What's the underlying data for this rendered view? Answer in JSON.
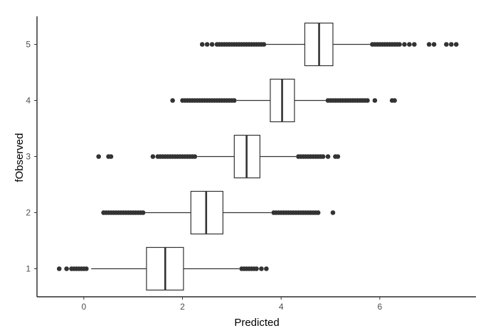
{
  "chart_data": {
    "type": "boxplot",
    "orientation": "horizontal",
    "title": "",
    "xlabel": "Predicted",
    "ylabel": "fObserved",
    "x_ticks": [
      "0",
      "2",
      "4",
      "6"
    ],
    "x_tick_values": [
      0,
      2,
      4,
      6
    ],
    "xlim": [
      -0.95,
      7.95
    ],
    "y_ticks": [
      "1",
      "2",
      "3",
      "4",
      "5"
    ],
    "grid": false,
    "legend": "none",
    "colors": {
      "box_fill": "#ffffff",
      "box_stroke": "#333333",
      "outlier": "#333333",
      "axis": "#000000"
    },
    "categories": [
      "1",
      "2",
      "3",
      "4",
      "5"
    ],
    "boxes": [
      {
        "category": "1",
        "whisker_low": 0.15,
        "q1": 1.27,
        "median": 1.65,
        "q3": 2.02,
        "whisker_high": 3.15,
        "outliers": [
          -0.5,
          -0.35,
          -0.25,
          -0.2,
          -0.15,
          -0.1,
          -0.05,
          0.0,
          0.05,
          3.2,
          3.25,
          3.3,
          3.35,
          3.4,
          3.45,
          3.5,
          3.6,
          3.7
        ]
      },
      {
        "category": "2",
        "whisker_low": 0.6,
        "q1": 2.17,
        "median": 2.48,
        "q3": 2.82,
        "whisker_high": 3.8,
        "outliers": [
          0.4,
          0.45,
          0.5,
          0.55,
          0.6,
          0.65,
          0.7,
          0.75,
          0.8,
          0.85,
          0.9,
          0.95,
          1.0,
          1.05,
          1.1,
          1.15,
          1.2,
          3.85,
          3.9,
          3.95,
          4.0,
          4.05,
          4.1,
          4.15,
          4.2,
          4.25,
          4.3,
          4.35,
          4.4,
          4.45,
          4.5,
          4.55,
          4.6,
          4.65,
          4.7,
          4.75,
          5.05
        ]
      },
      {
        "category": "3",
        "whisker_low": 2.3,
        "q1": 3.05,
        "median": 3.3,
        "q3": 3.57,
        "whisker_high": 4.3,
        "outliers": [
          0.3,
          0.5,
          0.55,
          1.4,
          1.5,
          1.55,
          1.6,
          1.65,
          1.7,
          1.75,
          1.8,
          1.85,
          1.9,
          1.95,
          2.0,
          2.05,
          2.1,
          2.15,
          2.2,
          2.25,
          4.35,
          4.4,
          4.45,
          4.5,
          4.55,
          4.6,
          4.65,
          4.7,
          4.75,
          4.8,
          4.85,
          4.95,
          5.1,
          5.15
        ]
      },
      {
        "category": "4",
        "whisker_low": 3.1,
        "q1": 3.78,
        "median": 4.02,
        "q3": 4.27,
        "whisker_high": 4.95,
        "outliers": [
          1.8,
          2.0,
          2.05,
          2.1,
          2.15,
          2.2,
          2.25,
          2.3,
          2.35,
          2.4,
          2.45,
          2.5,
          2.55,
          2.6,
          2.65,
          2.7,
          2.75,
          2.8,
          2.85,
          2.9,
          2.95,
          3.0,
          3.05,
          4.95,
          5.0,
          5.05,
          5.1,
          5.15,
          5.2,
          5.25,
          5.3,
          5.35,
          5.4,
          5.45,
          5.5,
          5.55,
          5.6,
          5.65,
          5.7,
          5.75,
          5.9,
          6.25,
          6.3
        ]
      },
      {
        "category": "5",
        "whisker_low": 3.65,
        "q1": 4.48,
        "median": 4.77,
        "q3": 5.05,
        "whisker_high": 5.82,
        "outliers": [
          2.4,
          2.5,
          2.6,
          2.7,
          2.75,
          2.8,
          2.85,
          2.9,
          2.95,
          3.0,
          3.05,
          3.1,
          3.15,
          3.2,
          3.25,
          3.3,
          3.35,
          3.4,
          3.45,
          3.5,
          3.55,
          3.6,
          3.65,
          5.85,
          5.9,
          5.95,
          6.0,
          6.05,
          6.1,
          6.15,
          6.2,
          6.25,
          6.3,
          6.35,
          6.4,
          6.5,
          6.6,
          6.7,
          7.0,
          7.1,
          7.35,
          7.45,
          7.55
        ]
      }
    ]
  }
}
